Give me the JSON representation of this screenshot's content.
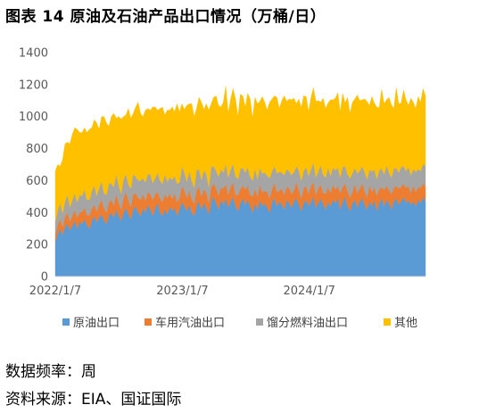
{
  "figure": {
    "title": "图表 14 原油及石油产品出口情况（万桶/日）"
  },
  "notes": {
    "frequency": "数据频率：周",
    "source": "资料来源：EIA、国证国际"
  },
  "colors": {
    "crude": "#5B9BD5",
    "gasoline": "#ED7D31",
    "distillate": "#A5A5A5",
    "other": "#FFC000",
    "axis": "#D9D9D9",
    "tick": "#595959"
  },
  "chart_data": {
    "type": "area",
    "stacked": true,
    "frequency": "weekly",
    "x_start": "2022-01-07",
    "x_ticks": [
      "2022/1/7",
      "2023/1/7",
      "2024/1/7"
    ],
    "y_ticks": [
      "0",
      "200",
      "400",
      "600",
      "800",
      "1000",
      "1200",
      "1400"
    ],
    "ylim": [
      0,
      1400
    ],
    "grid": false,
    "legend_position": "bottom",
    "series": [
      {
        "name": "原油出口",
        "color": "#5B9BD5",
        "values": [
          220,
          270,
          300,
          260,
          310,
          330,
          290,
          320,
          350,
          300,
          340,
          330,
          360,
          320,
          300,
          350,
          380,
          340,
          370,
          390,
          350,
          330,
          380,
          400,
          370,
          420,
          380,
          350,
          400,
          430,
          390,
          360,
          420,
          440,
          400,
          380,
          430,
          400,
          450,
          420,
          380,
          430,
          460,
          400,
          380,
          420,
          390,
          440,
          410,
          430,
          380,
          420,
          470,
          440,
          410,
          450,
          400,
          380,
          440,
          470,
          420,
          460,
          430,
          390,
          470,
          500,
          460,
          420,
          480,
          450,
          490,
          430,
          470,
          500,
          440,
          410,
          460,
          490,
          450,
          480,
          440,
          400,
          460,
          420,
          480,
          440,
          460,
          430,
          400,
          470,
          490,
          440,
          470,
          450,
          420,
          480,
          460,
          430,
          470,
          490,
          450,
          410,
          460,
          480,
          440,
          470,
          500,
          430,
          460,
          490,
          450,
          420,
          470,
          440,
          480,
          460,
          490,
          420,
          470,
          500,
          440,
          410,
          460,
          480,
          430,
          470,
          490,
          450,
          420,
          470,
          440,
          480,
          410,
          460,
          490,
          440,
          480,
          460,
          420,
          470,
          490,
          450,
          470,
          500,
          460,
          480,
          450,
          470,
          440,
          480,
          460,
          500,
          470
        ],
        "display": [
          "",
          "",
          "",
          "",
          "",
          "",
          "",
          "",
          "",
          "",
          "",
          "",
          "",
          "",
          "",
          "",
          "",
          "",
          "",
          "",
          "",
          "",
          "",
          "",
          "",
          "",
          "",
          "",
          "",
          "",
          "",
          "",
          "",
          "",
          "",
          "",
          "",
          "",
          "",
          "",
          "",
          "",
          "",
          "",
          "",
          "",
          "",
          "",
          "",
          "",
          "",
          "",
          "",
          "",
          "",
          "",
          "",
          "",
          "",
          "",
          "",
          "",
          "",
          "",
          "",
          "",
          "",
          "",
          "",
          "",
          "",
          "",
          "",
          "",
          "",
          "",
          "",
          "",
          "",
          "",
          "",
          "",
          "",
          "",
          "",
          "",
          "",
          "",
          "",
          "",
          "",
          "",
          "",
          "",
          "",
          "",
          "",
          "",
          "",
          "",
          "",
          "",
          "",
          "",
          "",
          "",
          "",
          "",
          "",
          "",
          "",
          "",
          "",
          "",
          "",
          "",
          "",
          "",
          "",
          "",
          "",
          "",
          "",
          "",
          "",
          "",
          "",
          "",
          "",
          "",
          "",
          "",
          "",
          "",
          "",
          "",
          "",
          "",
          "",
          "",
          "",
          "",
          "",
          "",
          "",
          "",
          "",
          "",
          "",
          "",
          "",
          "",
          "",
          "",
          "",
          "",
          "",
          "",
          "",
          "",
          ""
        ]
      },
      {
        "name": "车用汽油出口",
        "color": "#ED7D31",
        "values": [
          45,
          55,
          60,
          50,
          65,
          70,
          55,
          60,
          65,
          70,
          60,
          75,
          70,
          65,
          80,
          75,
          70,
          65,
          80,
          90,
          75,
          70,
          85,
          80,
          75,
          95,
          85,
          70,
          90,
          100,
          85,
          75,
          95,
          80,
          90,
          100,
          85,
          75,
          80,
          95,
          100,
          85,
          70,
          90,
          85,
          95,
          100,
          80,
          75,
          90,
          85,
          70,
          95,
          100,
          80,
          90,
          85,
          75,
          100,
          90,
          80,
          85,
          95,
          70,
          90,
          80,
          95,
          85,
          75,
          100,
          90,
          80,
          95,
          85,
          70,
          100,
          90,
          80,
          95,
          85,
          70,
          100,
          90,
          80,
          95,
          85,
          75,
          100,
          90,
          80,
          95,
          85,
          70,
          100,
          90,
          80,
          95,
          85,
          70,
          100,
          90,
          80,
          95,
          85,
          75,
          100,
          90,
          80,
          95,
          85,
          70,
          100,
          90,
          80,
          95,
          85,
          75,
          100,
          90,
          80,
          95,
          85,
          70,
          100,
          90,
          80,
          95,
          85,
          75,
          100,
          90,
          80,
          95,
          85,
          70,
          100,
          90,
          80,
          95,
          85,
          75,
          100,
          90,
          80,
          95,
          85,
          70,
          100,
          90,
          80,
          95,
          85,
          90
        ],
        "display": []
      },
      {
        "name": "馏分燃料油出口",
        "color": "#A5A5A5",
        "values": [
          80,
          90,
          100,
          85,
          95,
          110,
          90,
          100,
          105,
          95,
          110,
          100,
          115,
          95,
          100,
          110,
          120,
          100,
          105,
          115,
          95,
          110,
          120,
          100,
          115,
          125,
          105,
          100,
          120,
          110,
          100,
          115,
          125,
          105,
          110,
          120,
          100,
          115,
          110,
          125,
          105,
          100,
          120,
          110,
          115,
          125,
          105,
          100,
          120,
          110,
          115,
          100,
          125,
          110,
          105,
          120,
          115,
          100,
          125,
          110,
          105,
          120,
          115,
          100,
          125,
          110,
          105,
          120,
          115,
          100,
          125,
          110,
          105,
          120,
          115,
          100,
          125,
          110,
          105,
          120,
          115,
          100,
          125,
          110,
          105,
          120,
          115,
          100,
          125,
          110,
          105,
          120,
          115,
          100,
          125,
          110,
          105,
          120,
          115,
          100,
          125,
          110,
          105,
          120,
          115,
          100,
          125,
          110,
          105,
          120,
          115,
          100,
          125,
          110,
          105,
          120,
          115,
          100,
          125,
          110,
          105,
          120,
          115,
          100,
          125,
          110,
          105,
          120,
          115,
          100,
          125,
          110,
          105,
          120,
          115,
          100,
          125,
          110,
          105,
          120,
          115,
          100,
          125,
          110,
          105,
          120,
          115,
          100,
          125,
          110,
          105,
          120,
          130
        ],
        "display": []
      },
      {
        "name": "其他",
        "color": "#FFC000",
        "values": [
          315,
          285,
          230,
          335,
          360,
          330,
          395,
          410,
          410,
          455,
          390,
          395,
          385,
          420,
          440,
          395,
          410,
          455,
          365,
          405,
          480,
          450,
          355,
          420,
          460,
          350,
          430,
          465,
          390,
          370,
          475,
          440,
          380,
          435,
          490,
          420,
          385,
          450,
          410,
          400,
          475,
          445,
          390,
          450,
          480,
          370,
          445,
          420,
          455,
          400,
          500,
          440,
          390,
          395,
          475,
          420,
          480,
          445,
          385,
          450,
          485,
          380,
          440,
          480,
          395,
          430,
          470,
          445,
          390,
          440,
          485,
          400,
          440,
          470,
          485,
          390,
          465,
          450,
          410,
          460,
          485,
          390,
          445,
          470,
          415,
          480,
          440,
          410,
          475,
          450,
          440,
          475,
          395,
          450,
          495,
          425,
          450,
          470,
          460,
          390,
          445,
          455,
          470,
          440,
          400,
          450,
          465,
          475,
          440,
          395,
          480,
          430,
          400,
          475,
          425,
          450,
          470,
          410,
          460,
          395,
          480,
          405,
          445,
          430,
          490,
          440,
          415,
          455,
          485,
          400,
          470,
          415,
          450,
          390,
          495,
          440,
          410,
          470,
          455,
          375,
          500,
          430,
          400,
          475,
          445,
          385,
          480,
          420,
          395,
          455,
          430,
          470,
          440
        ],
        "display": []
      }
    ]
  }
}
